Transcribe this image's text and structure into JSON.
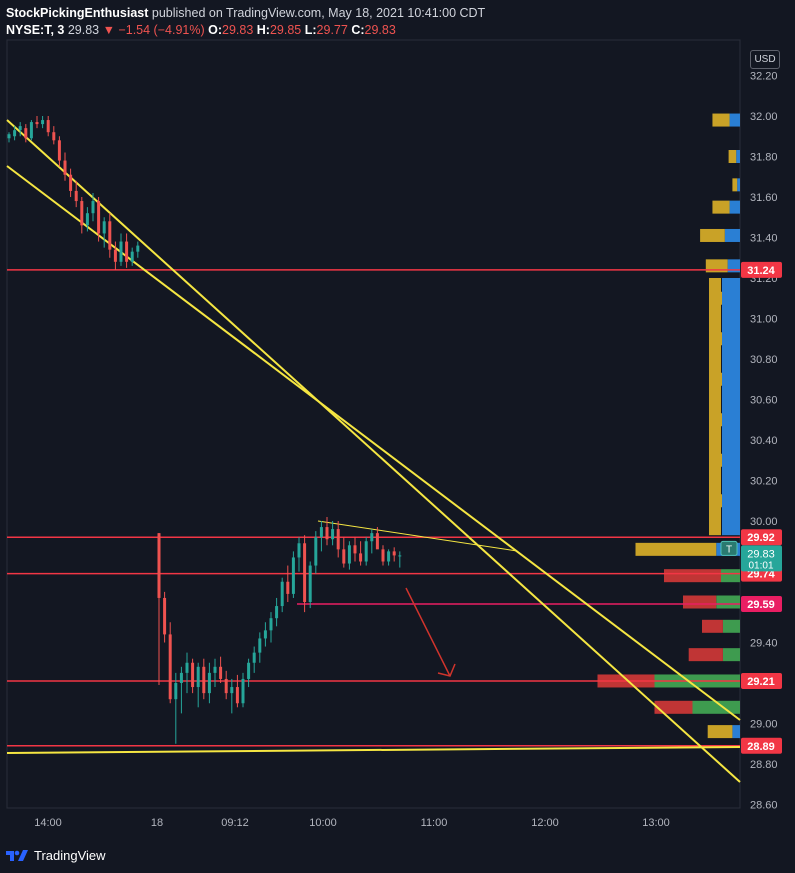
{
  "header": {
    "author": "StockPickingEnthusiast",
    "published": "published on TradingView.com, May 18, 2021 10:41:00 CDT",
    "symbol": "NYSE:T, 3",
    "last": "29.83",
    "change": "▼ −1.54 (−4.91%)",
    "o_label": "O:",
    "o_value": "29.83",
    "h_label": "H:",
    "h_value": "29.85",
    "l_label": "L:",
    "l_value": "29.77",
    "c_label": "C:",
    "c_value": "29.83"
  },
  "currency": "USD",
  "footer": {
    "brand": "TradingView"
  },
  "colors": {
    "background": "#131722",
    "up": "#26a69a",
    "down": "#ef5350",
    "trendline": "#f5e642",
    "level": "#f23645",
    "price_tag": "#f23645",
    "vp_gold": "#c9a227",
    "vp_blue": "#2a7fd4",
    "vp_green": "#3e9b4f",
    "vp_red": "#c03535"
  },
  "chart_data": {
    "type": "candlestick",
    "title": "",
    "ylim": [
      28.53,
      32.27
    ],
    "y_ticks": [
      "32.20",
      "32.00",
      "31.80",
      "31.60",
      "31.40",
      "31.20",
      "31.00",
      "30.80",
      "30.60",
      "30.40",
      "30.20",
      "30.00",
      "29.80",
      "29.60",
      "29.40",
      "29.20",
      "29.00",
      "28.80",
      "28.60"
    ],
    "x_ticks": [
      "14:00",
      "18",
      "09:12",
      "10:00",
      "11:00",
      "12:00",
      "13:00"
    ],
    "horizontal_levels": [
      31.24,
      29.92,
      29.74,
      29.59,
      29.21,
      28.89
    ],
    "level_labels": [
      "31.24",
      "29.92",
      "29.74",
      "29.59",
      "29.21",
      "28.89"
    ],
    "current_price": {
      "value": "29.83",
      "countdown": "01:01",
      "marker": "T"
    },
    "candles_day1": [
      [
        31.89,
        31.92,
        31.87,
        31.91
      ],
      [
        31.9,
        31.95,
        31.88,
        31.93
      ],
      [
        31.93,
        31.97,
        31.9,
        31.95
      ],
      [
        31.94,
        31.96,
        31.87,
        31.89
      ],
      [
        31.89,
        31.98,
        31.88,
        31.97
      ],
      [
        31.97,
        32.0,
        31.94,
        31.96
      ],
      [
        31.96,
        32.0,
        31.94,
        31.98
      ],
      [
        31.98,
        32.0,
        31.9,
        31.92
      ],
      [
        31.92,
        31.95,
        31.86,
        31.88
      ],
      [
        31.88,
        31.9,
        31.75,
        31.78
      ],
      [
        31.78,
        31.82,
        31.68,
        31.71
      ],
      [
        31.71,
        31.74,
        31.6,
        31.63
      ],
      [
        31.63,
        31.68,
        31.55,
        31.58
      ],
      [
        31.58,
        31.6,
        31.42,
        31.46
      ],
      [
        31.46,
        31.55,
        31.43,
        31.52
      ],
      [
        31.52,
        31.62,
        31.48,
        31.58
      ],
      [
        31.58,
        31.6,
        31.38,
        31.42
      ],
      [
        31.42,
        31.5,
        31.35,
        31.48
      ],
      [
        31.48,
        31.52,
        31.3,
        31.34
      ],
      [
        31.34,
        31.38,
        31.24,
        31.28
      ],
      [
        31.28,
        31.42,
        31.26,
        31.38
      ],
      [
        31.38,
        31.42,
        31.25,
        31.28
      ],
      [
        31.28,
        31.35,
        31.26,
        31.33
      ],
      [
        31.33,
        31.38,
        31.3,
        31.36
      ]
    ],
    "candles_day2": [
      [
        29.94,
        29.94,
        29.19,
        29.62
      ],
      [
        29.62,
        29.65,
        29.4,
        29.44
      ],
      [
        29.44,
        29.5,
        29.1,
        29.12
      ],
      [
        29.12,
        29.25,
        28.9,
        29.2
      ],
      [
        29.2,
        29.28,
        29.05,
        29.25
      ],
      [
        29.25,
        29.35,
        29.15,
        29.3
      ],
      [
        29.3,
        29.32,
        29.15,
        29.18
      ],
      [
        29.18,
        29.3,
        29.08,
        29.28
      ],
      [
        29.28,
        29.32,
        29.12,
        29.15
      ],
      [
        29.15,
        29.3,
        29.1,
        29.25
      ],
      [
        29.25,
        29.32,
        29.18,
        29.28
      ],
      [
        29.28,
        29.33,
        29.2,
        29.22
      ],
      [
        29.22,
        29.26,
        29.12,
        29.15
      ],
      [
        29.15,
        29.22,
        29.05,
        29.18
      ],
      [
        29.18,
        29.24,
        29.08,
        29.1
      ],
      [
        29.1,
        29.25,
        29.08,
        29.22
      ],
      [
        29.22,
        29.32,
        29.18,
        29.3
      ],
      [
        29.3,
        29.38,
        29.25,
        29.35
      ],
      [
        29.35,
        29.45,
        29.3,
        29.42
      ],
      [
        29.42,
        29.5,
        29.38,
        29.46
      ],
      [
        29.46,
        29.55,
        29.4,
        29.52
      ],
      [
        29.52,
        29.62,
        29.48,
        29.58
      ],
      [
        29.58,
        29.72,
        29.55,
        29.7
      ],
      [
        29.7,
        29.78,
        29.6,
        29.64
      ],
      [
        29.64,
        29.85,
        29.62,
        29.82
      ],
      [
        29.82,
        29.92,
        29.75,
        29.89
      ],
      [
        29.89,
        29.93,
        29.55,
        29.6
      ],
      [
        29.6,
        29.8,
        29.57,
        29.78
      ],
      [
        29.78,
        29.95,
        29.74,
        29.92
      ],
      [
        29.92,
        30.0,
        29.85,
        29.97
      ],
      [
        29.97,
        30.02,
        29.88,
        29.91
      ],
      [
        29.91,
        30.0,
        29.88,
        29.96
      ],
      [
        29.96,
        30.0,
        29.82,
        29.86
      ],
      [
        29.86,
        29.92,
        29.77,
        29.79
      ],
      [
        29.79,
        29.9,
        29.76,
        29.88
      ],
      [
        29.88,
        29.92,
        29.8,
        29.84
      ],
      [
        29.84,
        29.9,
        29.78,
        29.8
      ],
      [
        29.8,
        29.92,
        29.78,
        29.9
      ],
      [
        29.9,
        29.96,
        29.84,
        29.94
      ],
      [
        29.94,
        29.97,
        29.88,
        29.86
      ],
      [
        29.86,
        29.88,
        29.78,
        29.8
      ],
      [
        29.8,
        29.86,
        29.78,
        29.85
      ],
      [
        29.85,
        29.87,
        29.8,
        29.83
      ],
      [
        29.83,
        29.85,
        29.77,
        29.83
      ]
    ],
    "volume_profile": [
      {
        "price": 31.98,
        "gold": 1.8,
        "blue": 1.1
      },
      {
        "price": 31.8,
        "gold": 0.8,
        "blue": 0.4
      },
      {
        "price": 31.66,
        "gold": 0.5,
        "blue": 0.3
      },
      {
        "price": 31.55,
        "gold": 1.8,
        "blue": 1.1
      },
      {
        "price": 31.41,
        "gold": 2.6,
        "blue": 1.6
      },
      {
        "price": 31.26,
        "gold": 2.3,
        "blue": 1.3
      },
      {
        "price": 31.1,
        "gold": 1.2,
        "blue": 1.6
      },
      {
        "price": 30.9,
        "gold": 1.2,
        "blue": 1.6
      },
      {
        "price": 30.7,
        "gold": 1.2,
        "blue": 1.6
      },
      {
        "price": 30.5,
        "gold": 1.2,
        "blue": 1.6
      },
      {
        "price": 30.3,
        "gold": 1.2,
        "blue": 1.6
      },
      {
        "price": 30.1,
        "gold": 1.2,
        "blue": 1.6
      },
      {
        "price": 29.86,
        "gold": 8.5,
        "blue": 2.5
      },
      {
        "price": 29.73,
        "red": 6.0,
        "green": 2.0
      },
      {
        "price": 29.6,
        "red": 3.5,
        "green": 2.5
      },
      {
        "price": 29.48,
        "red": 2.2,
        "green": 1.8
      },
      {
        "price": 29.34,
        "red": 3.6,
        "green": 1.8
      },
      {
        "price": 29.21,
        "red": 6.0,
        "green": 9.0
      },
      {
        "price": 29.08,
        "red": 4.0,
        "green": 5.0
      },
      {
        "price": 28.96,
        "gold": 2.6,
        "blue": 0.8
      }
    ]
  }
}
